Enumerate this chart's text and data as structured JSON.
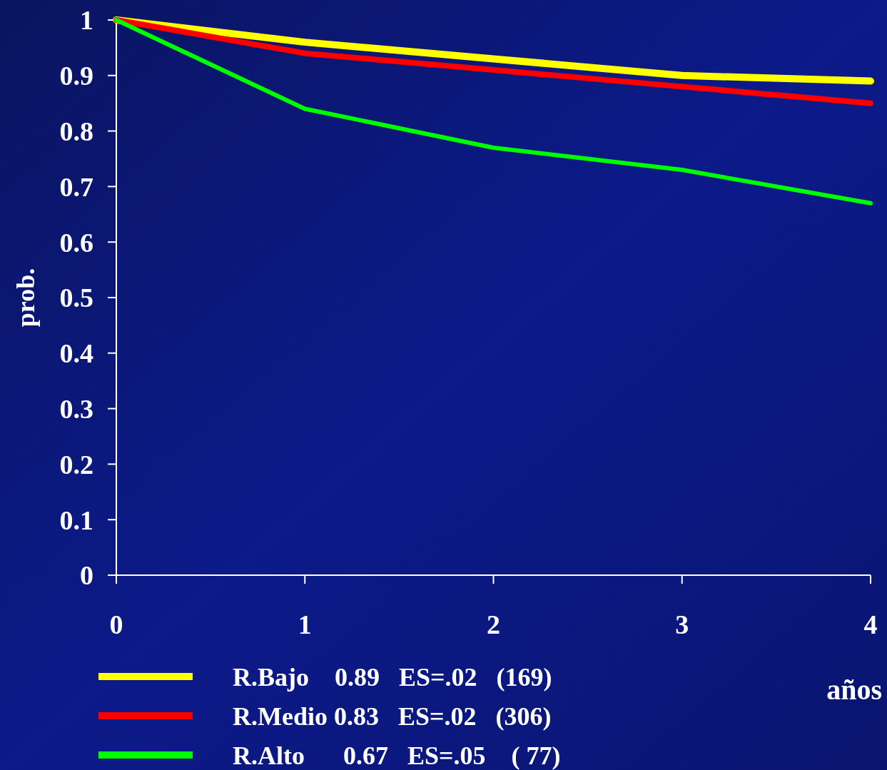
{
  "chart_data": {
    "type": "line",
    "xlabel": "años",
    "ylabel": "prob.",
    "x": [
      0,
      1,
      2,
      3,
      4
    ],
    "xlim": [
      0,
      4
    ],
    "xticks": [
      0,
      1,
      2,
      3,
      4
    ],
    "ylim": [
      0,
      1
    ],
    "yticks": [
      0,
      0.1,
      0.2,
      0.3,
      0.4,
      0.5,
      0.6,
      0.7,
      0.8,
      0.9,
      1
    ],
    "grid": false,
    "legend": "bottom",
    "marker": "none",
    "line_style": "solid",
    "series": [
      {
        "name": "R.Bajo    0.89   ES=.02   (169)",
        "color": "#ffff00",
        "values": [
          1,
          0.96,
          0.93,
          0.9,
          0.89
        ]
      },
      {
        "name": "R.Medio 0.83   ES=.02   (306)",
        "color": "#ff0000",
        "values": [
          1,
          0.94,
          0.91,
          0.88,
          0.85
        ]
      },
      {
        "name": "R.Alto      0.67   ES=.05    ( 77)",
        "color": "#00ff00",
        "values": [
          1,
          0.84,
          0.77,
          0.73,
          0.67
        ]
      }
    ]
  }
}
